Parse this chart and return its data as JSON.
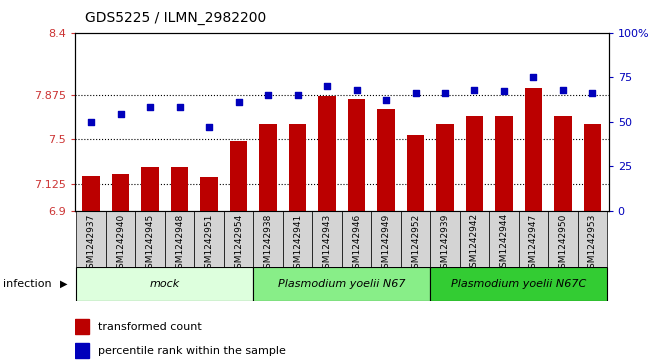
{
  "title": "GDS5225 / ILMN_2982200",
  "categories": [
    "GSM1242937",
    "GSM1242940",
    "GSM1242945",
    "GSM1242948",
    "GSM1242951",
    "GSM1242954",
    "GSM1242938",
    "GSM1242941",
    "GSM1242943",
    "GSM1242946",
    "GSM1242949",
    "GSM1242952",
    "GSM1242939",
    "GSM1242942",
    "GSM1242944",
    "GSM1242947",
    "GSM1242950",
    "GSM1242953"
  ],
  "bar_values": [
    7.19,
    7.21,
    7.27,
    7.27,
    7.18,
    7.49,
    7.63,
    7.63,
    7.87,
    7.84,
    7.76,
    7.54,
    7.63,
    7.7,
    7.7,
    7.93,
    7.7,
    7.63
  ],
  "dot_values": [
    50,
    54,
    58,
    58,
    47,
    61,
    65,
    65,
    70,
    68,
    62,
    66,
    66,
    68,
    67,
    75,
    68,
    66
  ],
  "bar_color": "#bb0000",
  "dot_color": "#0000bb",
  "ylim_left": [
    6.9,
    8.4
  ],
  "ylim_right": [
    0,
    100
  ],
  "yticks_left": [
    6.9,
    7.125,
    7.5,
    7.875,
    8.4
  ],
  "yticks_right": [
    0,
    25,
    50,
    75,
    100
  ],
  "ytick_labels_left": [
    "6.9",
    "7.125",
    "7.5",
    "7.875",
    "8.4"
  ],
  "ytick_labels_right": [
    "0",
    "25",
    "50",
    "75",
    "100%"
  ],
  "hlines": [
    7.125,
    7.5,
    7.875
  ],
  "groups": [
    {
      "label": "mock",
      "start": 0,
      "end": 5,
      "color": "#ddffdd"
    },
    {
      "label": "Plasmodium yoelii N67",
      "start": 6,
      "end": 11,
      "color": "#88ee88"
    },
    {
      "label": "Plasmodium yoelii N67C",
      "start": 12,
      "end": 17,
      "color": "#33cc33"
    }
  ],
  "infection_label": "infection",
  "legend_items": [
    {
      "label": "transformed count",
      "color": "#bb0000"
    },
    {
      "label": "percentile rank within the sample",
      "color": "#0000bb"
    }
  ],
  "left_tick_color": "#cc3333",
  "right_tick_color": "#0000bb",
  "xtick_bg": "#d4d4d4"
}
